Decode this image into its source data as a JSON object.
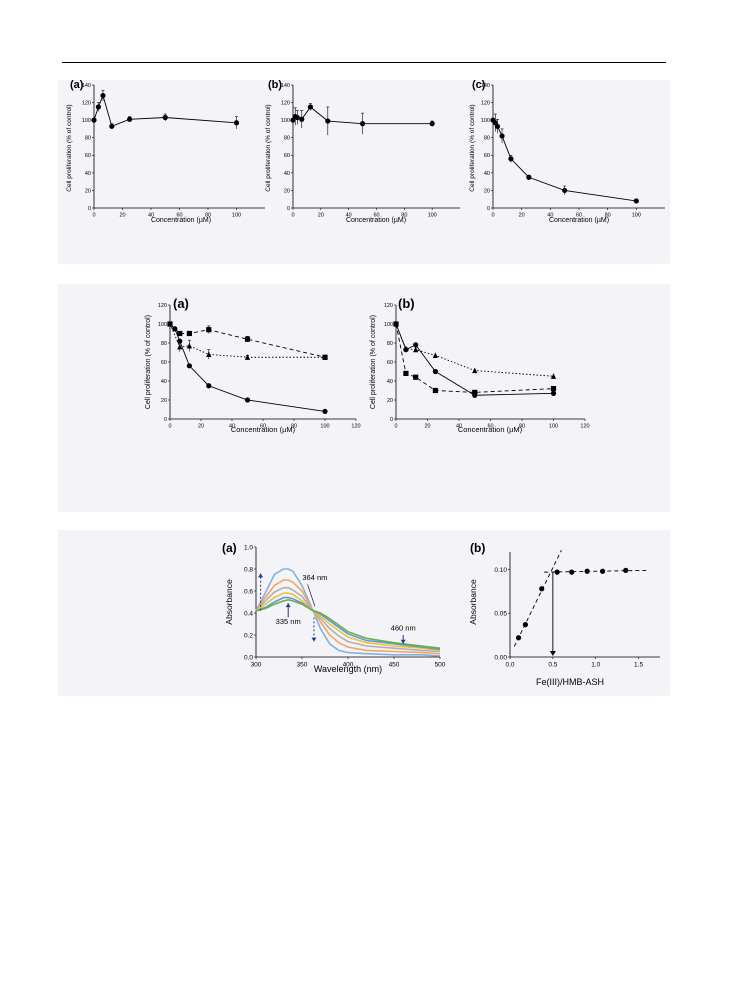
{
  "chart_data": [
    {
      "id": "p1a",
      "type": "scatter",
      "panel_label": "(a)",
      "xlabel": "Concentration (µM)",
      "ylabel": "Cell proliferation (% of control)",
      "xlim": [
        0,
        120
      ],
      "ylim": [
        0,
        140
      ],
      "xticks": [
        "0",
        "20",
        "40",
        "60",
        "80",
        "100"
      ],
      "yticks": [
        "0",
        "20",
        "40",
        "60",
        "80",
        "100",
        "120",
        "140"
      ],
      "series": [
        {
          "marker": "circle",
          "line": "solid",
          "x": [
            0,
            3.1,
            6.3,
            12.5,
            25,
            50,
            100
          ],
          "y": [
            100,
            115,
            128,
            93,
            101,
            103,
            97
          ],
          "err": [
            0,
            5,
            6,
            3,
            3,
            4,
            7
          ]
        }
      ]
    },
    {
      "id": "p1b",
      "type": "scatter",
      "panel_label": "(b)",
      "xlabel": "Concentration (µM)",
      "ylabel": "Cell proliferation (% of control)",
      "xlim": [
        0,
        120
      ],
      "ylim": [
        0,
        140
      ],
      "xticks": [
        "0",
        "20",
        "40",
        "60",
        "80",
        "100"
      ],
      "yticks": [
        "0",
        "20",
        "40",
        "60",
        "80",
        "100",
        "120",
        "140"
      ],
      "series": [
        {
          "marker": "circle",
          "line": "solid",
          "x": [
            0,
            1.6,
            3.1,
            6.3,
            12.5,
            25,
            50,
            100
          ],
          "y": [
            100,
            104,
            103,
            101,
            115,
            99,
            96,
            96
          ],
          "err": [
            0,
            10,
            8,
            10,
            4,
            16,
            12,
            3
          ]
        }
      ]
    },
    {
      "id": "p1c",
      "type": "scatter",
      "panel_label": "(c)",
      "xlabel": "Concentration (µM)",
      "ylabel": "Cell proliferation (% of control)",
      "xlim": [
        0,
        120
      ],
      "ylim": [
        0,
        140
      ],
      "xticks": [
        "0",
        "20",
        "40",
        "60",
        "80",
        "100"
      ],
      "yticks": [
        "0",
        "20",
        "40",
        "60",
        "80",
        "100",
        "120",
        "140"
      ],
      "series": [
        {
          "marker": "circle",
          "line": "solid",
          "x": [
            0,
            1.6,
            3.1,
            6.3,
            12.5,
            25,
            50,
            100
          ],
          "y": [
            100,
            97,
            93,
            82,
            56,
            35,
            20,
            8
          ],
          "err": [
            0,
            10,
            8,
            8,
            4,
            2,
            5,
            2
          ]
        }
      ]
    },
    {
      "id": "p2a",
      "type": "scatter",
      "panel_label": "(a)",
      "xlabel": "Concentration (µM)",
      "ylabel": "Cell proliferation (% of control)",
      "xlim": [
        0,
        120
      ],
      "ylim": [
        0,
        120
      ],
      "xticks": [
        "0",
        "20",
        "40",
        "60",
        "80",
        "100",
        "120"
      ],
      "yticks": [
        "0",
        "20",
        "40",
        "60",
        "80",
        "100",
        "120"
      ],
      "series": [
        {
          "marker": "square",
          "line": "dash",
          "x": [
            0,
            6.3,
            12.5,
            25,
            50,
            100
          ],
          "y": [
            100,
            90,
            90,
            94,
            84,
            65
          ],
          "err": [
            0,
            2,
            2,
            4,
            3,
            2
          ]
        },
        {
          "marker": "triangle",
          "line": "dot",
          "x": [
            0,
            6.3,
            12.5,
            25,
            50,
            100
          ],
          "y": [
            100,
            76,
            77,
            68,
            65,
            65
          ],
          "err": [
            0,
            5,
            6,
            5,
            2,
            2
          ]
        },
        {
          "marker": "circle",
          "line": "solid",
          "x": [
            0,
            3.1,
            6.3,
            12.5,
            25,
            50,
            100
          ],
          "y": [
            100,
            95,
            82,
            56,
            35,
            20,
            8
          ],
          "err": [
            0,
            0,
            0,
            0,
            0,
            0,
            0
          ]
        }
      ]
    },
    {
      "id": "p2b",
      "type": "scatter",
      "panel_label": "(b)",
      "xlabel": "Concentration (µM)",
      "ylabel": "Cell proliferation (% of control)",
      "xlim": [
        0,
        120
      ],
      "ylim": [
        0,
        120
      ],
      "xticks": [
        "0",
        "20",
        "40",
        "60",
        "80",
        "100",
        "120"
      ],
      "yticks": [
        "0",
        "20",
        "40",
        "60",
        "80",
        "100",
        "120"
      ],
      "series": [
        {
          "marker": "triangle",
          "line": "dot",
          "x": [
            0,
            6.3,
            12.5,
            25,
            50,
            100
          ],
          "y": [
            100,
            74,
            73,
            67,
            51,
            45
          ],
          "err": [
            0,
            0,
            0,
            0,
            0,
            0
          ]
        },
        {
          "marker": "circle",
          "line": "solid",
          "x": [
            0,
            6.3,
            12.5,
            25,
            50,
            100
          ],
          "y": [
            100,
            73,
            78,
            50,
            25,
            27
          ],
          "err": [
            0,
            0,
            0,
            0,
            0,
            0
          ]
        },
        {
          "marker": "square",
          "line": "dash",
          "x": [
            0,
            6.3,
            12.5,
            25,
            50,
            100
          ],
          "y": [
            100,
            48,
            44,
            30,
            28,
            32
          ],
          "err": [
            0,
            0,
            0,
            0,
            0,
            0
          ]
        }
      ]
    },
    {
      "id": "p3a",
      "type": "line",
      "panel_label": "(a)",
      "xlabel": "Wavelength (nm)",
      "ylabel": "Absorbance",
      "xlim": [
        300,
        500
      ],
      "ylim": [
        0,
        1.0
      ],
      "xticks": [
        "300",
        "350",
        "400",
        "450",
        "500"
      ],
      "yticks": [
        "0.0",
        "0.2",
        "0.4",
        "0.6",
        "0.8",
        "1.0"
      ],
      "annotations": [
        "364 nm",
        "335 nm",
        "460 nm"
      ],
      "annotation_positions_data": [
        [
          364,
          0.7
        ],
        [
          335,
          0.3
        ],
        [
          460,
          0.24
        ]
      ],
      "series": [
        {
          "color": "#7fb2e0",
          "x": [
            300,
            310,
            320,
            330,
            335,
            340,
            350,
            360,
            370,
            380,
            390,
            400,
            420,
            450,
            480,
            500
          ],
          "y": [
            0.42,
            0.58,
            0.75,
            0.8,
            0.8,
            0.78,
            0.65,
            0.46,
            0.26,
            0.12,
            0.06,
            0.04,
            0.03,
            0.02,
            0.02,
            0.01
          ]
        },
        {
          "color": "#f4a460",
          "x": [
            300,
            310,
            320,
            330,
            335,
            340,
            350,
            360,
            370,
            380,
            390,
            400,
            420,
            450,
            480,
            500
          ],
          "y": [
            0.42,
            0.54,
            0.65,
            0.7,
            0.7,
            0.68,
            0.6,
            0.45,
            0.32,
            0.2,
            0.13,
            0.09,
            0.06,
            0.05,
            0.04,
            0.03
          ]
        },
        {
          "color": "#b0b0b0",
          "x": [
            300,
            310,
            320,
            330,
            335,
            340,
            350,
            360,
            370,
            380,
            390,
            400,
            420,
            450,
            480,
            500
          ],
          "y": [
            0.42,
            0.51,
            0.59,
            0.63,
            0.63,
            0.61,
            0.55,
            0.44,
            0.35,
            0.26,
            0.19,
            0.14,
            0.1,
            0.08,
            0.06,
            0.05
          ]
        },
        {
          "color": "#f0c040",
          "x": [
            300,
            310,
            320,
            330,
            335,
            340,
            350,
            360,
            370,
            380,
            390,
            400,
            420,
            450,
            480,
            500
          ],
          "y": [
            0.42,
            0.48,
            0.54,
            0.58,
            0.58,
            0.57,
            0.51,
            0.43,
            0.37,
            0.3,
            0.24,
            0.18,
            0.13,
            0.1,
            0.08,
            0.06
          ]
        },
        {
          "color": "#5b9bd5",
          "x": [
            300,
            310,
            320,
            330,
            335,
            340,
            350,
            360,
            370,
            380,
            390,
            400,
            420,
            450,
            480,
            500
          ],
          "y": [
            0.42,
            0.45,
            0.5,
            0.54,
            0.54,
            0.53,
            0.49,
            0.43,
            0.39,
            0.33,
            0.27,
            0.21,
            0.15,
            0.12,
            0.09,
            0.07
          ]
        },
        {
          "color": "#70ad47",
          "x": [
            300,
            310,
            320,
            330,
            335,
            340,
            350,
            360,
            370,
            380,
            390,
            400,
            420,
            450,
            480,
            500
          ],
          "y": [
            0.42,
            0.44,
            0.48,
            0.51,
            0.52,
            0.51,
            0.48,
            0.43,
            0.4,
            0.35,
            0.29,
            0.23,
            0.17,
            0.13,
            0.1,
            0.08
          ]
        }
      ]
    },
    {
      "id": "p3b",
      "type": "scatter",
      "panel_label": "(b)",
      "xlabel": "Fe(III)/HMB-ASH",
      "ylabel": "Absorbance",
      "xlim": [
        0,
        1.75
      ],
      "ylim": [
        0,
        0.12
      ],
      "xticks": [
        "0.0",
        "0.5",
        "1.0",
        "1.5"
      ],
      "yticks": [
        "0.00",
        "0.05",
        "0.10"
      ],
      "series": [
        {
          "marker": "circle",
          "line": "none",
          "x": [
            0.1,
            0.18,
            0.37,
            0.55,
            0.72,
            0.9,
            1.08,
            1.35
          ],
          "y": [
            0.022,
            0.037,
            0.078,
            0.097,
            0.097,
            0.098,
            0.098,
            0.099
          ],
          "err": [
            0,
            0,
            0,
            0,
            0,
            0,
            0,
            0
          ]
        }
      ],
      "fit_lines": [
        {
          "x": [
            0.05,
            0.6
          ],
          "y": [
            0.012,
            0.122
          ]
        },
        {
          "x": [
            0.4,
            1.6
          ],
          "y": [
            0.097,
            0.099
          ]
        }
      ],
      "intersection_x": 0.5
    }
  ]
}
